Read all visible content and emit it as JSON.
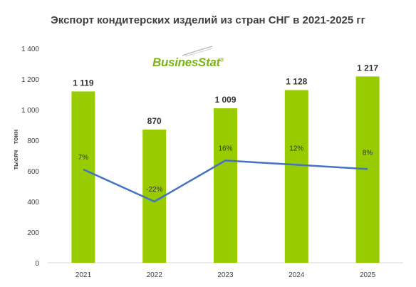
{
  "chart_data": {
    "type": "bar",
    "title": "Экспорт кондитерских изделий из стран СНГ в 2021-2025 гг",
    "ylabel": "тысяч тонн",
    "xlabel": "",
    "categories": [
      "2021",
      "2022",
      "2023",
      "2024",
      "2025"
    ],
    "values": [
      1119,
      870,
      1009,
      1128,
      1217
    ],
    "value_labels": [
      "1 119",
      "870",
      "1 009",
      "1 128",
      "1 217"
    ],
    "ylim": [
      0,
      1400
    ],
    "yticks": [
      0,
      200,
      400,
      600,
      800,
      1000,
      1200,
      1400
    ],
    "ytick_labels": [
      "0",
      "200",
      "400",
      "600",
      "800",
      "1 000",
      "1 200",
      "1 400"
    ],
    "growth_labels": [
      "7%",
      "-22%",
      "16%",
      "12%",
      "8%"
    ],
    "growth_line_levels": [
      610,
      400,
      668,
      640,
      612
    ],
    "grid": false,
    "legend": "none",
    "colors": {
      "bar": "#99cc00",
      "line": "#4472c4",
      "text": "#404040",
      "title": "#404040"
    }
  },
  "logo": {
    "text_a": "Busines",
    "text_b": "Stat",
    "reg": "®"
  }
}
